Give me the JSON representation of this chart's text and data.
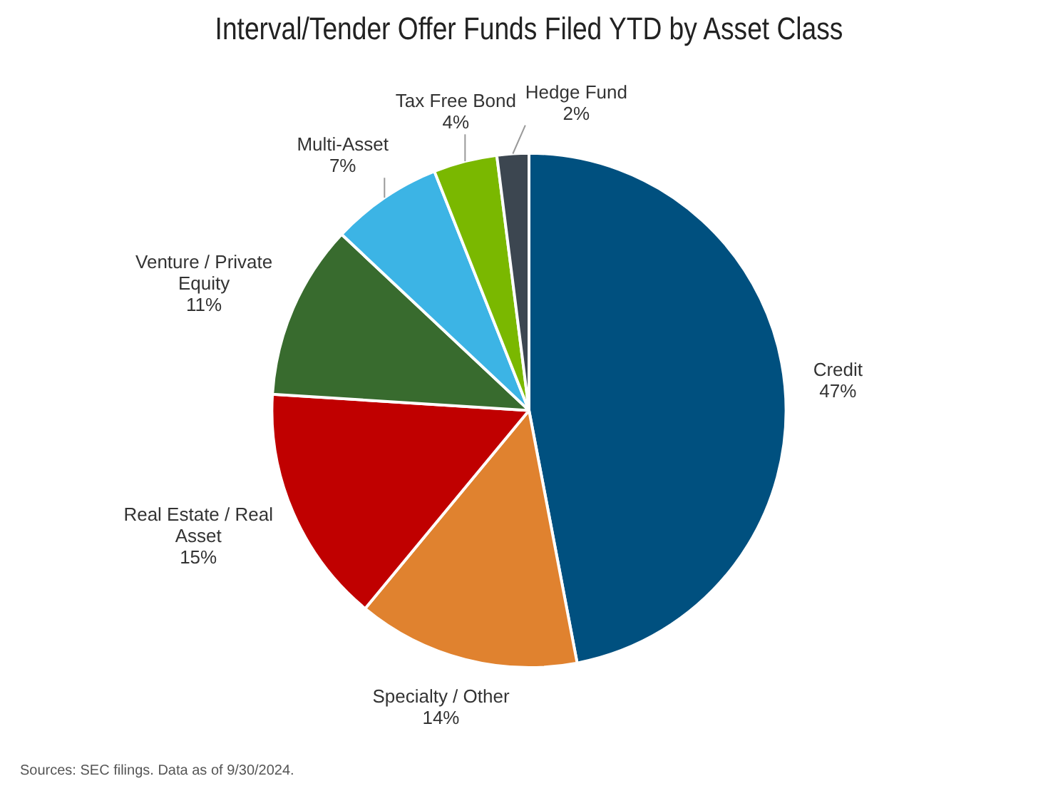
{
  "chart_data": {
    "type": "pie",
    "title": "Interval/Tender Offer Funds Filed YTD by Asset Class",
    "categories": [
      "Credit",
      "Specialty / Other",
      "Real Estate / Real Asset",
      "Venture / Private Equity",
      "Multi-Asset",
      "Tax Free Bond",
      "Hedge Fund"
    ],
    "values": [
      47,
      14,
      15,
      11,
      7,
      4,
      2
    ],
    "value_labels": [
      "47%",
      "14%",
      "15%",
      "11%",
      "7%",
      "4%",
      "2%"
    ],
    "colors": [
      "#00507f",
      "#e0822f",
      "#c00000",
      "#386b2e",
      "#3cb4e5",
      "#7ab800",
      "#3c4650"
    ],
    "legend": false,
    "annotations": [
      "Sources: SEC filings. Data as of 9/30/2024."
    ]
  }
}
